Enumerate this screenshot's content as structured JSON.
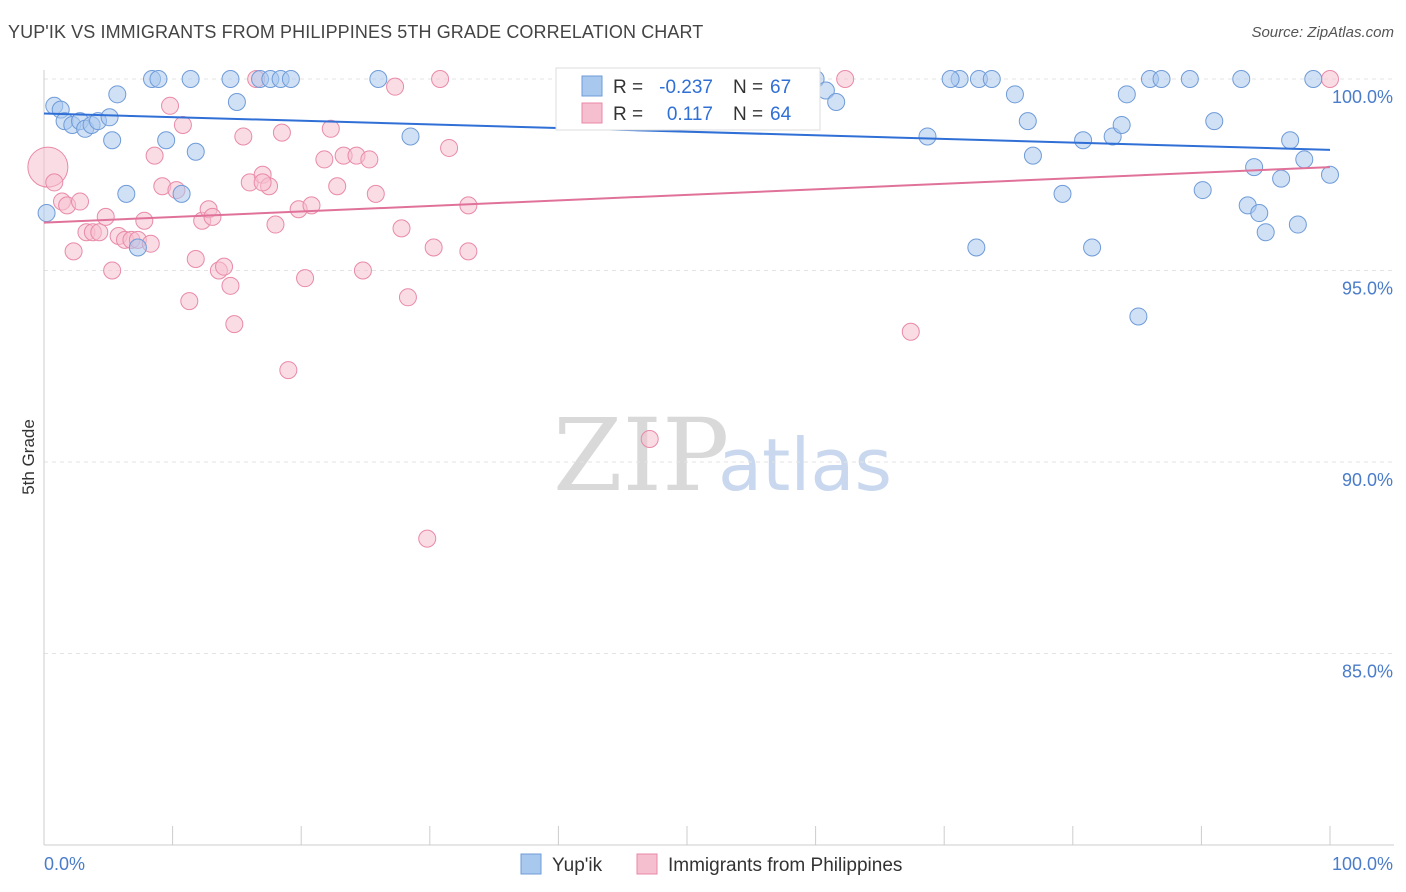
{
  "header": {
    "title": "YUP'IK VS IMMIGRANTS FROM PHILIPPINES 5TH GRADE CORRELATION CHART",
    "source": "Source: ZipAtlas.com"
  },
  "watermark": {
    "zip": "ZIP",
    "atlas": "atlas"
  },
  "legend_top": {
    "rows": [
      {
        "r_label": "R =",
        "r_value": "-0.237",
        "n_label": "N =",
        "n_value": "67"
      },
      {
        "r_label": "R =",
        "r_value": "0.117",
        "n_label": "N =",
        "n_value": "64"
      }
    ]
  },
  "chart_data": {
    "type": "scatter",
    "title": "YUP'IK VS IMMIGRANTS FROM PHILIPPINES 5TH GRADE CORRELATION CHART",
    "xlabel": "",
    "ylabel": "5th Grade",
    "xlim": [
      0,
      100
    ],
    "ylim": [
      80.5,
      100.8
    ],
    "x_ticks": [
      "0.0%",
      "100.0%"
    ],
    "y_ticks": [
      {
        "value": 100,
        "label": "100.0%"
      },
      {
        "value": 95,
        "label": "95.0%"
      },
      {
        "value": 90,
        "label": "90.0%"
      },
      {
        "value": 85,
        "label": "85.0%"
      }
    ],
    "grid": true,
    "legend_position": "bottom",
    "colors": {
      "yupik_fill": "#a9c8ee",
      "yupik_stroke": "#6f9bd8",
      "yupik_line": "#2f6fd6",
      "phil_fill": "#f6bfd0",
      "phil_stroke": "#e98aa8",
      "phil_line": "#e0729a"
    },
    "series": [
      {
        "name": "Yup'ik",
        "r": -0.237,
        "n": 67,
        "trend": {
          "x": [
            0,
            100
          ],
          "y": [
            99.1,
            98.15
          ]
        },
        "points": [
          [
            0.2,
            96.5
          ],
          [
            0.8,
            99.3
          ],
          [
            1.3,
            99.2
          ],
          [
            1.6,
            98.9
          ],
          [
            2.2,
            98.8
          ],
          [
            2.8,
            98.9
          ],
          [
            3.2,
            98.7
          ],
          [
            3.7,
            98.8
          ],
          [
            4.2,
            98.9
          ],
          [
            5.1,
            99.0
          ],
          [
            5.3,
            98.4
          ],
          [
            5.7,
            99.6
          ],
          [
            6.4,
            97.0
          ],
          [
            7.3,
            95.6
          ],
          [
            8.4,
            100.0
          ],
          [
            8.9,
            100.0
          ],
          [
            9.5,
            98.4
          ],
          [
            10.7,
            97.0
          ],
          [
            11.4,
            100.0
          ],
          [
            11.8,
            98.1
          ],
          [
            14.5,
            100.0
          ],
          [
            15.0,
            99.4
          ],
          [
            16.8,
            100.0
          ],
          [
            17.6,
            100.0
          ],
          [
            18.4,
            100.0
          ],
          [
            19.2,
            100.0
          ],
          [
            26.0,
            100.0
          ],
          [
            28.5,
            98.5
          ],
          [
            42.0,
            100.0
          ],
          [
            55.1,
            99.6
          ],
          [
            56.0,
            99.5
          ],
          [
            57.2,
            100.0
          ],
          [
            60.0,
            100.0
          ],
          [
            60.8,
            99.7
          ],
          [
            61.6,
            99.4
          ],
          [
            68.7,
            98.5
          ],
          [
            71.2,
            100.0
          ],
          [
            70.5,
            100.0
          ],
          [
            72.5,
            95.6
          ],
          [
            72.7,
            100.0
          ],
          [
            75.5,
            99.6
          ],
          [
            73.7,
            100.0
          ],
          [
            76.9,
            98.0
          ],
          [
            76.5,
            98.9
          ],
          [
            79.2,
            97.0
          ],
          [
            80.8,
            98.4
          ],
          [
            81.5,
            95.6
          ],
          [
            83.1,
            98.5
          ],
          [
            84.2,
            99.6
          ],
          [
            83.8,
            98.8
          ],
          [
            85.1,
            93.8
          ],
          [
            86.0,
            100.0
          ],
          [
            89.1,
            100.0
          ],
          [
            90.1,
            97.1
          ],
          [
            86.9,
            100.0
          ],
          [
            91.0,
            98.9
          ],
          [
            94.1,
            97.7
          ],
          [
            96.9,
            98.4
          ],
          [
            93.1,
            100.0
          ],
          [
            93.6,
            96.7
          ],
          [
            94.5,
            96.5
          ],
          [
            95.0,
            96.0
          ],
          [
            96.2,
            97.4
          ],
          [
            97.5,
            96.2
          ],
          [
            98.0,
            97.9
          ],
          [
            100.0,
            97.5
          ],
          [
            98.7,
            100.0
          ]
        ]
      },
      {
        "name": "Immigrants from Philippines",
        "r": 0.117,
        "n": 64,
        "trend": {
          "x": [
            0,
            100
          ],
          "y": [
            96.25,
            97.7
          ]
        },
        "points": [
          [
            0.3,
            97.7
          ],
          [
            0.8,
            97.3
          ],
          [
            1.4,
            96.8
          ],
          [
            1.8,
            96.7
          ],
          [
            2.3,
            95.5
          ],
          [
            2.8,
            96.8
          ],
          [
            3.3,
            96.0
          ],
          [
            3.8,
            96.0
          ],
          [
            4.3,
            96.0
          ],
          [
            4.8,
            96.4
          ],
          [
            5.3,
            95.0
          ],
          [
            5.8,
            95.9
          ],
          [
            6.3,
            95.8
          ],
          [
            6.8,
            95.8
          ],
          [
            7.3,
            95.8
          ],
          [
            7.8,
            96.3
          ],
          [
            8.3,
            95.7
          ],
          [
            8.6,
            98.0
          ],
          [
            9.2,
            97.2
          ],
          [
            9.8,
            99.3
          ],
          [
            10.3,
            97.1
          ],
          [
            10.8,
            98.8
          ],
          [
            11.3,
            94.2
          ],
          [
            11.8,
            95.3
          ],
          [
            12.3,
            96.3
          ],
          [
            12.8,
            96.6
          ],
          [
            13.1,
            96.4
          ],
          [
            13.6,
            95.0
          ],
          [
            14.0,
            95.1
          ],
          [
            14.5,
            94.6
          ],
          [
            14.8,
            93.6
          ],
          [
            15.5,
            98.5
          ],
          [
            16.0,
            97.3
          ],
          [
            16.5,
            100.0
          ],
          [
            17.0,
            97.5
          ],
          [
            17.5,
            97.2
          ],
          [
            18.0,
            96.2
          ],
          [
            18.5,
            98.6
          ],
          [
            19.0,
            92.4
          ],
          [
            19.8,
            96.6
          ],
          [
            20.3,
            94.8
          ],
          [
            20.8,
            96.7
          ],
          [
            21.8,
            97.9
          ],
          [
            22.3,
            98.7
          ],
          [
            22.8,
            97.2
          ],
          [
            23.3,
            98.0
          ],
          [
            24.3,
            98.0
          ],
          [
            24.8,
            95.0
          ],
          [
            25.3,
            97.9
          ],
          [
            25.8,
            97.0
          ],
          [
            27.3,
            99.8
          ],
          [
            27.8,
            96.1
          ],
          [
            28.3,
            94.3
          ],
          [
            29.8,
            88.0
          ],
          [
            30.3,
            95.6
          ],
          [
            30.8,
            100.0
          ],
          [
            31.5,
            98.2
          ],
          [
            33.0,
            96.7
          ],
          [
            33.0,
            95.5
          ],
          [
            47.1,
            90.6
          ],
          [
            62.3,
            100.0
          ],
          [
            67.4,
            93.4
          ],
          [
            100.0,
            100.0
          ],
          [
            17.0,
            97.3
          ]
        ]
      }
    ]
  },
  "legend_bottom": {
    "items": [
      {
        "label": "Yup'ik"
      },
      {
        "label": "Immigrants from Philippines"
      }
    ]
  }
}
